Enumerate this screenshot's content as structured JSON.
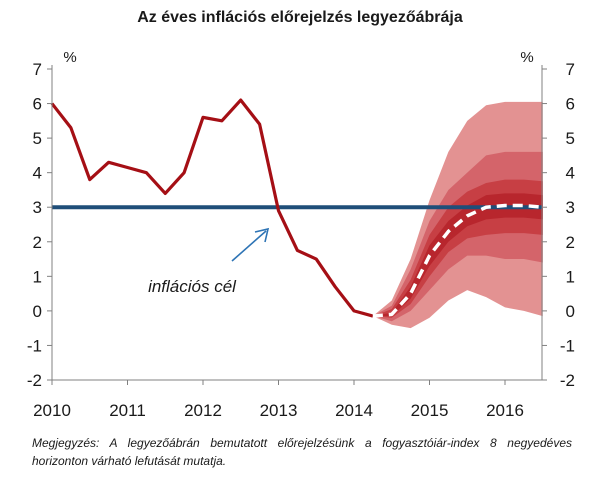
{
  "chart_data": {
    "type": "line",
    "title": "Az éves inflációs előrejelzés legyezőábrája",
    "unit_left": "%",
    "unit_right": "%",
    "ylim": [
      -2,
      7
    ],
    "y_ticks": [
      -2,
      -1,
      0,
      1,
      2,
      3,
      4,
      5,
      6,
      7
    ],
    "x_ticks": [
      "2010",
      "2011",
      "2012",
      "2013",
      "2014",
      "2015",
      "2016"
    ],
    "xlim": [
      2010,
      2016.5
    ],
    "grid": false,
    "series": [
      {
        "role": "actual",
        "color": "#a50f15",
        "x": [
          2010.0,
          2010.25,
          2010.5,
          2010.75,
          2011.0,
          2011.25,
          2011.5,
          2011.75,
          2012.0,
          2012.25,
          2012.5,
          2012.75,
          2013.0,
          2013.25,
          2013.5,
          2013.75,
          2014.0,
          2014.25
        ],
        "y": [
          6.0,
          5.3,
          3.8,
          4.3,
          4.15,
          4.0,
          3.4,
          4.0,
          5.6,
          5.5,
          6.1,
          5.4,
          2.9,
          1.75,
          1.5,
          0.7,
          0.0,
          -0.15
        ]
      },
      {
        "role": "forecast",
        "color": "#ffffff",
        "x": [
          2014.25,
          2014.5,
          2014.75,
          2015.0,
          2015.25,
          2015.5,
          2015.75,
          2016.0,
          2016.25,
          2016.5
        ],
        "y": [
          -0.15,
          -0.1,
          0.5,
          1.6,
          2.3,
          2.75,
          3.0,
          3.05,
          3.05,
          3.0
        ]
      }
    ],
    "fan": {
      "x": [
        2014.25,
        2014.5,
        2014.75,
        2015.0,
        2015.25,
        2015.5,
        2015.75,
        2016.0,
        2016.25,
        2016.5
      ],
      "colors": [
        "#e39292",
        "#d4646a",
        "#c73f44",
        "#b8262d"
      ],
      "bands": [
        {
          "lower": [
            -0.15,
            -0.4,
            -0.5,
            -0.2,
            0.3,
            0.6,
            0.4,
            0.1,
            0.0,
            -0.15
          ],
          "upper": [
            -0.15,
            0.3,
            1.5,
            3.2,
            4.6,
            5.5,
            5.95,
            6.05,
            6.05,
            6.05
          ]
        },
        {
          "lower": [
            -0.15,
            -0.3,
            0.0,
            0.6,
            1.2,
            1.6,
            1.6,
            1.5,
            1.5,
            1.4
          ],
          "upper": [
            -0.15,
            0.15,
            1.2,
            2.6,
            3.5,
            4.0,
            4.5,
            4.6,
            4.6,
            4.6
          ]
        },
        {
          "lower": [
            -0.15,
            -0.2,
            0.2,
            1.0,
            1.7,
            2.1,
            2.2,
            2.25,
            2.25,
            2.2
          ],
          "upper": [
            -0.15,
            0.05,
            0.9,
            2.2,
            3.0,
            3.45,
            3.7,
            3.8,
            3.8,
            3.75
          ]
        },
        {
          "lower": [
            -0.15,
            -0.15,
            0.35,
            1.3,
            2.0,
            2.45,
            2.65,
            2.7,
            2.7,
            2.65
          ],
          "upper": [
            -0.15,
            -0.05,
            0.7,
            1.9,
            2.6,
            3.05,
            3.35,
            3.4,
            3.4,
            3.35
          ]
        }
      ]
    },
    "target": {
      "value": 3,
      "color": "#1f4e79",
      "label": "inflációs cél"
    }
  },
  "note": "Megjegyzés: A legyezőábrán bemutatott előrejelzésünk a fogyasztóiár-index 8 negyedéves horizonton várható lefutását mutatja."
}
